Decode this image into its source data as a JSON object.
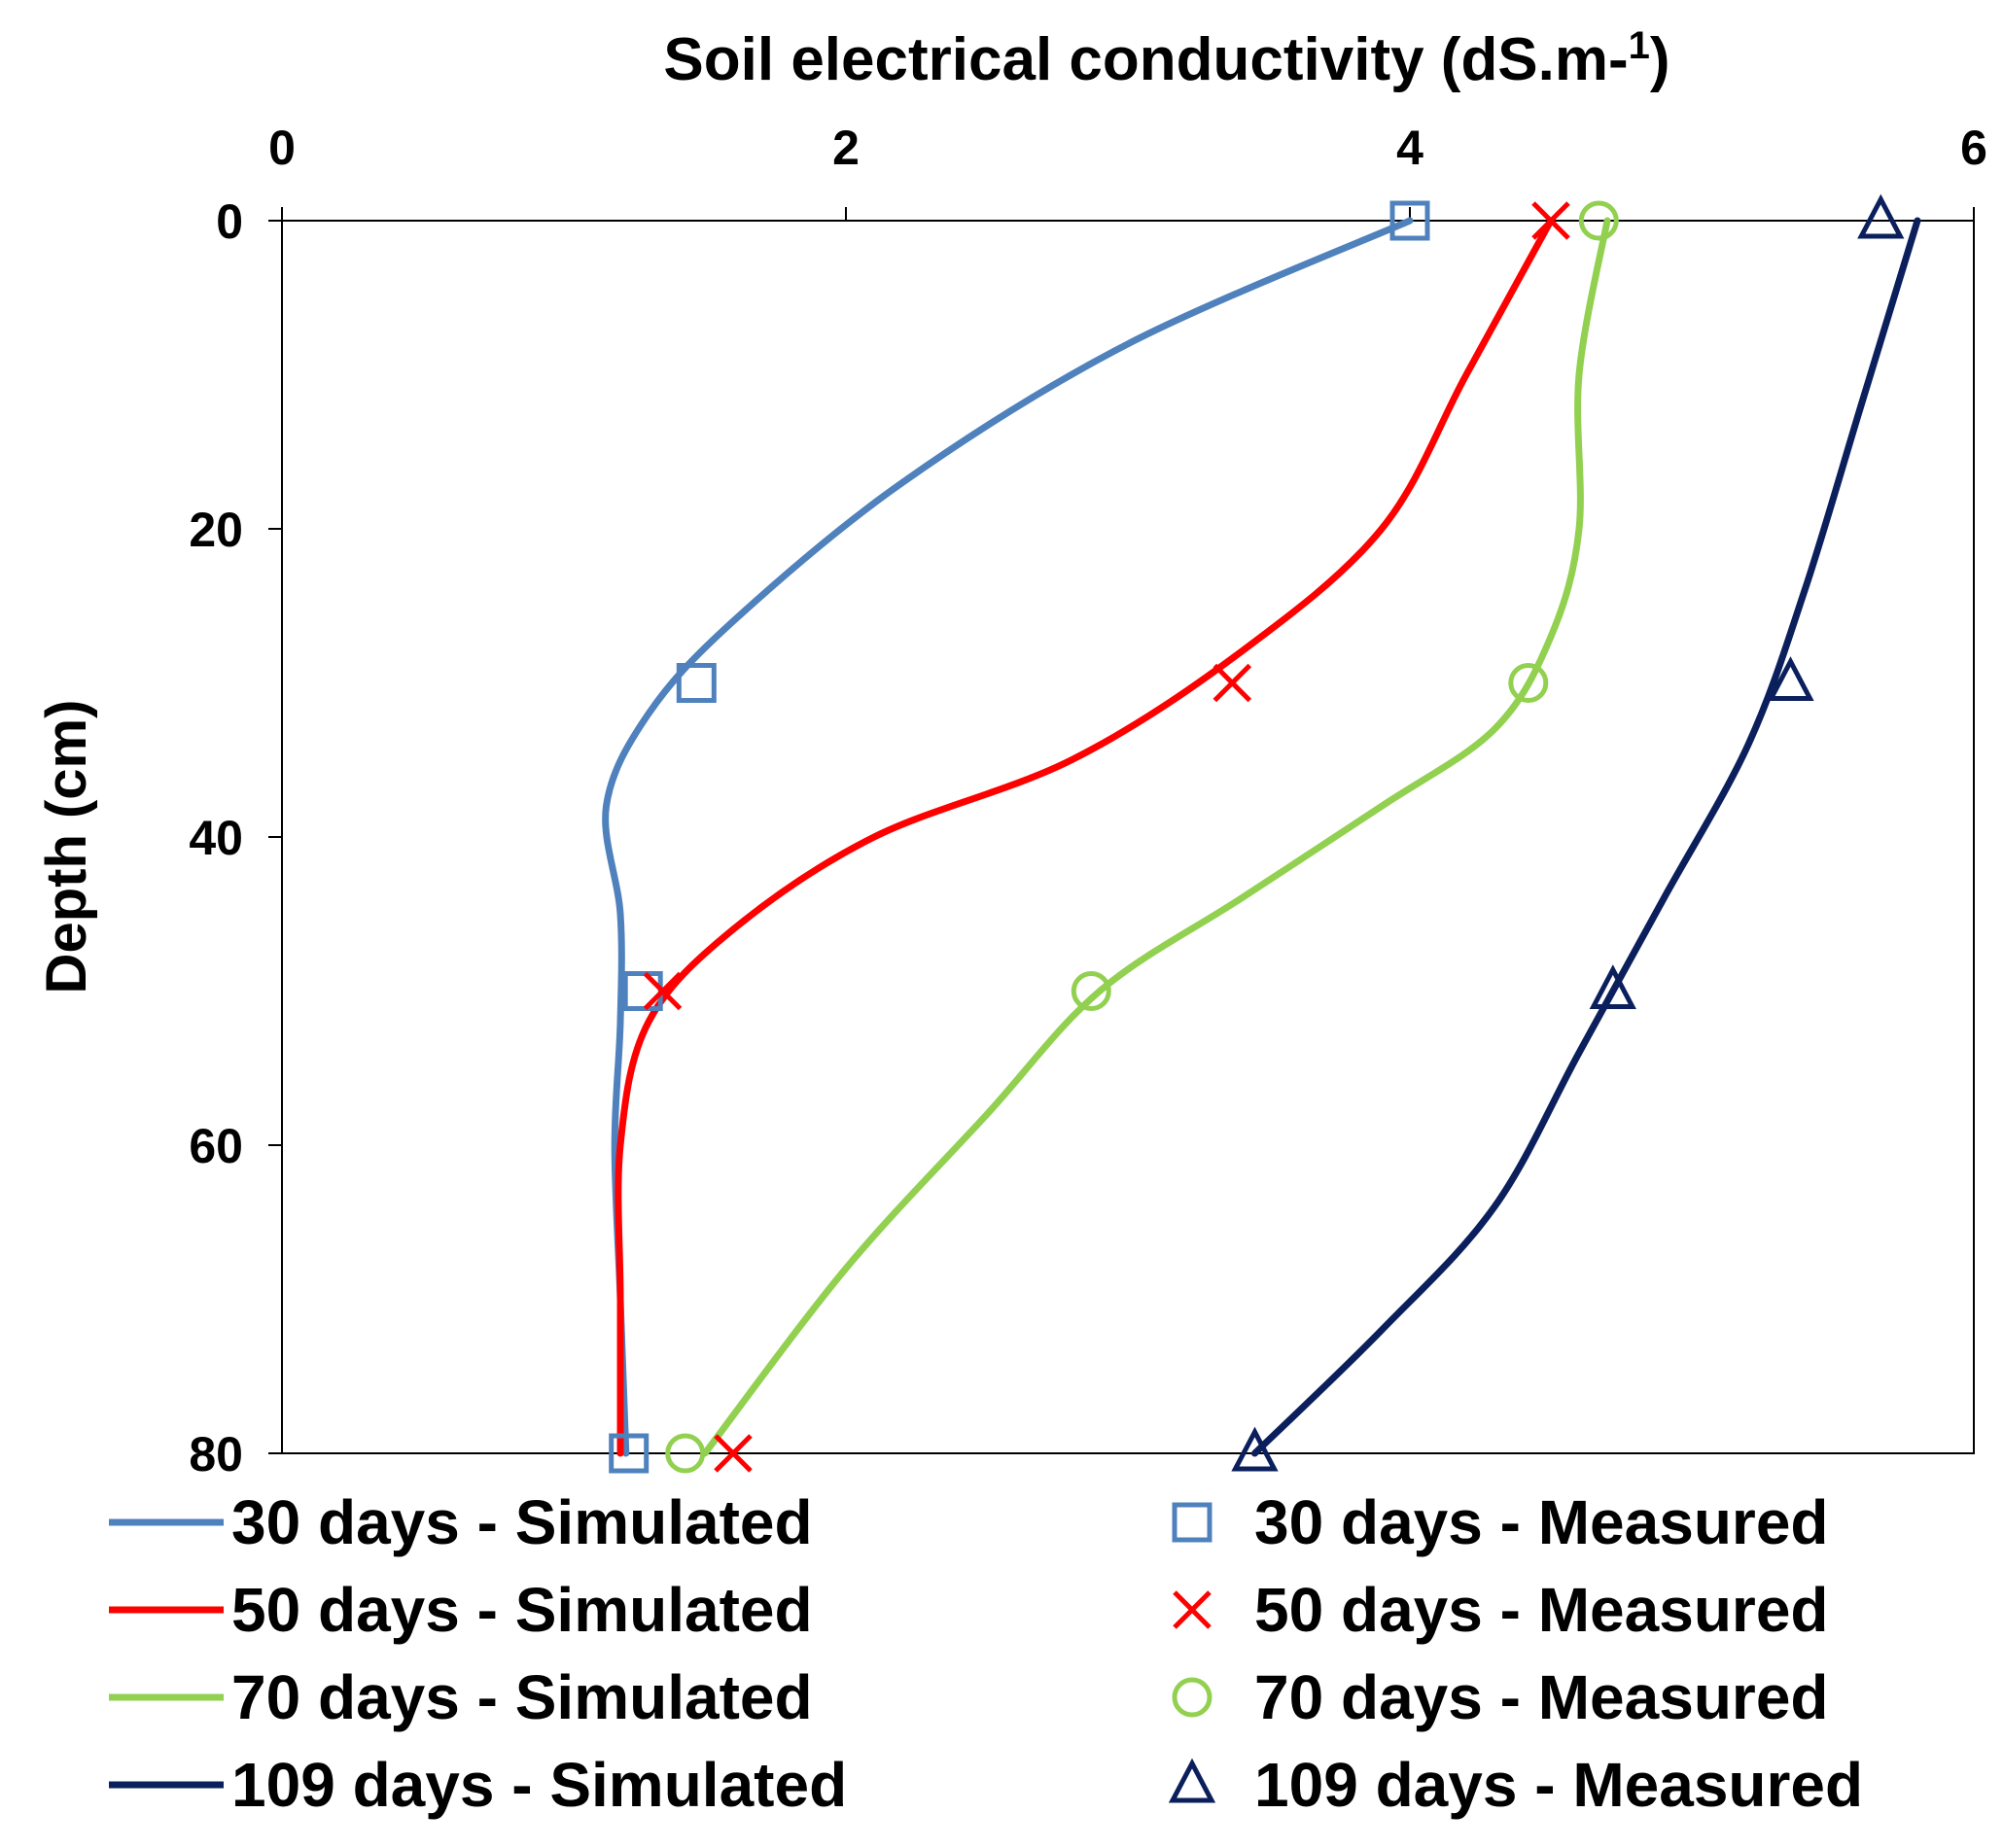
{
  "chart_data": {
    "type": "line",
    "orientation": "depth-profile",
    "title": "",
    "xlabel": "Soil electrical conductivity (dS.m-1)",
    "xlabel_parts": {
      "main": "Soil electrical conductivity (dS.m-",
      "sup": "1",
      "end": ")"
    },
    "ylabel": "Depth (cm)",
    "xlim": [
      0,
      6
    ],
    "ylim": [
      0,
      80
    ],
    "y_inverted": true,
    "x_axis_position": "top",
    "x_ticks": [
      0,
      2,
      4,
      6
    ],
    "y_ticks": [
      0,
      20,
      40,
      60,
      80
    ],
    "x_tick_labels": [
      "0",
      "2",
      "4",
      "6"
    ],
    "y_tick_labels": [
      "0",
      "20",
      "40",
      "60",
      "80"
    ],
    "grid": false,
    "legend_position": "bottom",
    "series": [
      {
        "name": "30 days - Simulated",
        "kind": "line",
        "color": "#4F81BD",
        "points": [
          [
            4.0,
            0
          ],
          [
            3.0,
            8
          ],
          [
            2.2,
            17
          ],
          [
            1.6,
            26
          ],
          [
            1.3,
            32
          ],
          [
            1.15,
            38
          ],
          [
            1.2,
            45
          ],
          [
            1.2,
            52
          ],
          [
            1.18,
            60
          ],
          [
            1.2,
            70
          ],
          [
            1.22,
            80
          ]
        ]
      },
      {
        "name": "30 days - Measured",
        "kind": "marker",
        "marker": "square",
        "color": "#4F81BD",
        "points": [
          [
            4.0,
            0
          ],
          [
            1.47,
            30
          ],
          [
            1.28,
            50
          ],
          [
            1.23,
            80
          ]
        ]
      },
      {
        "name": "50 days - Simulated",
        "kind": "line",
        "color": "#FF0000",
        "points": [
          [
            4.5,
            0
          ],
          [
            4.2,
            10
          ],
          [
            3.9,
            20
          ],
          [
            3.4,
            28
          ],
          [
            2.8,
            35
          ],
          [
            2.1,
            40
          ],
          [
            1.6,
            46
          ],
          [
            1.3,
            52
          ],
          [
            1.2,
            60
          ],
          [
            1.2,
            70
          ],
          [
            1.2,
            80
          ]
        ]
      },
      {
        "name": "50 days - Measured",
        "kind": "marker",
        "marker": "x",
        "color": "#FF0000",
        "points": [
          [
            4.5,
            0
          ],
          [
            3.37,
            30
          ],
          [
            1.35,
            50
          ],
          [
            1.6,
            80
          ]
        ]
      },
      {
        "name": "70 days - Simulated",
        "kind": "line",
        "color": "#92D050",
        "points": [
          [
            4.7,
            0
          ],
          [
            4.6,
            10
          ],
          [
            4.6,
            20
          ],
          [
            4.5,
            27
          ],
          [
            4.3,
            33
          ],
          [
            3.9,
            38
          ],
          [
            3.4,
            44
          ],
          [
            2.9,
            50
          ],
          [
            2.5,
            58
          ],
          [
            2.0,
            68
          ],
          [
            1.5,
            80
          ]
        ]
      },
      {
        "name": "70 days - Measured",
        "kind": "marker",
        "marker": "circle",
        "color": "#92D050",
        "points": [
          [
            4.67,
            0
          ],
          [
            4.42,
            30
          ],
          [
            2.87,
            50
          ],
          [
            1.43,
            80
          ]
        ]
      },
      {
        "name": "109 days - Simulated",
        "kind": "line",
        "color": "#0B1F5C",
        "points": [
          [
            5.8,
            0
          ],
          [
            5.6,
            12
          ],
          [
            5.4,
            24
          ],
          [
            5.2,
            34
          ],
          [
            4.9,
            44
          ],
          [
            4.6,
            54
          ],
          [
            4.3,
            64
          ],
          [
            3.9,
            72
          ],
          [
            3.45,
            80
          ]
        ]
      },
      {
        "name": "109 days - Measured",
        "kind": "marker",
        "marker": "triangle",
        "color": "#0B1F5C",
        "points": [
          [
            5.67,
            0
          ],
          [
            5.35,
            30
          ],
          [
            4.72,
            50
          ],
          [
            3.45,
            80
          ]
        ]
      }
    ]
  }
}
